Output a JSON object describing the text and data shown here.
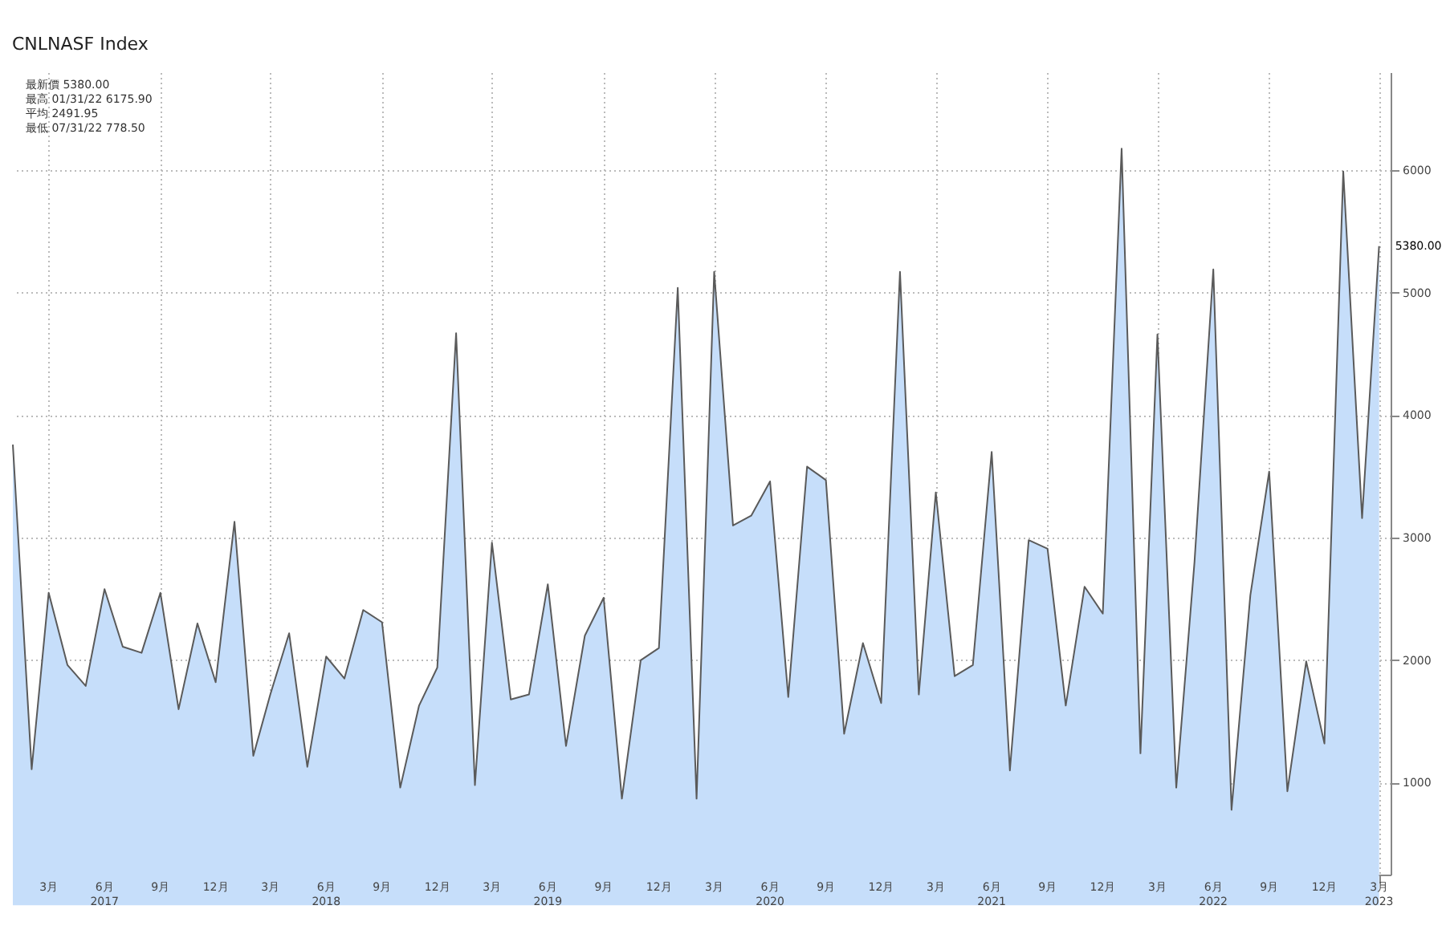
{
  "chart_data": {
    "type": "area",
    "title": "CNLNASF Index",
    "x": [
      "2017-01",
      "2017-02",
      "2017-03",
      "2017-04",
      "2017-05",
      "2017-06",
      "2017-07",
      "2017-08",
      "2017-09",
      "2017-10",
      "2017-11",
      "2017-12",
      "2018-01",
      "2018-02",
      "2018-03",
      "2018-04",
      "2018-05",
      "2018-06",
      "2018-07",
      "2018-08",
      "2018-09",
      "2018-10",
      "2018-11",
      "2018-12",
      "2019-01",
      "2019-02",
      "2019-03",
      "2019-04",
      "2019-05",
      "2019-06",
      "2019-07",
      "2019-08",
      "2019-09",
      "2019-10",
      "2019-11",
      "2019-12",
      "2020-01",
      "2020-02",
      "2020-03",
      "2020-04",
      "2020-05",
      "2020-06",
      "2020-07",
      "2020-08",
      "2020-09",
      "2020-10",
      "2020-11",
      "2020-12",
      "2021-01",
      "2021-02",
      "2021-03",
      "2021-04",
      "2021-05",
      "2021-06",
      "2021-07",
      "2021-08",
      "2021-09",
      "2021-10",
      "2021-11",
      "2021-12",
      "2022-01",
      "2022-02",
      "2022-03",
      "2022-04",
      "2022-05",
      "2022-06",
      "2022-07",
      "2022-08",
      "2022-09",
      "2022-10",
      "2022-11",
      "2022-12",
      "2023-01",
      "2023-02",
      "2023-03"
    ],
    "series": [
      {
        "color": "#c6defa",
        "values": [
          3760,
          1110,
          2550,
          1960,
          1790,
          2580,
          2110,
          2060,
          2550,
          1600,
          2300,
          1820,
          3130,
          1220,
          1720,
          2220,
          1130,
          2030,
          1850,
          2410,
          2310,
          960,
          1630,
          1940,
          4670,
          980,
          2960,
          1680,
          1720,
          2620,
          1300,
          2200,
          2510,
          870,
          2000,
          2100,
          5040,
          870,
          5170,
          3100,
          3180,
          3460,
          1700,
          3580,
          3470,
          1400,
          2140,
          1650,
          5170,
          1720,
          3370,
          1870,
          1960,
          3700,
          1100,
          2980,
          2910,
          1630,
          2600,
          2380,
          6175.9,
          1240,
          4660,
          960,
          2800,
          5190,
          778.5,
          2530,
          3540,
          930,
          1990,
          1320,
          5990,
          3160,
          5380
        ]
      }
    ],
    "xlim": [
      "2017-01",
      "2023-03-20"
    ],
    "xticks": [
      {
        "value": "2017-03",
        "label": "3月"
      },
      {
        "value": "2017-06",
        "label": "6月\n2017"
      },
      {
        "value": "2017-09",
        "label": "9月"
      },
      {
        "value": "2017-12",
        "label": "12月"
      },
      {
        "value": "2018-03",
        "label": "3月"
      },
      {
        "value": "2018-06",
        "label": "6月\n2018"
      },
      {
        "value": "2018-09",
        "label": "9月"
      },
      {
        "value": "2018-12",
        "label": "12月"
      },
      {
        "value": "2019-03",
        "label": "3月"
      },
      {
        "value": "2019-06",
        "label": "6月\n2019"
      },
      {
        "value": "2019-09",
        "label": "9月"
      },
      {
        "value": "2019-12",
        "label": "12月"
      },
      {
        "value": "2020-03",
        "label": "3月"
      },
      {
        "value": "2020-06",
        "label": "6月\n2020"
      },
      {
        "value": "2020-09",
        "label": "9月"
      },
      {
        "value": "2020-12",
        "label": "12月"
      },
      {
        "value": "2021-03",
        "label": "3月"
      },
      {
        "value": "2021-06",
        "label": "6月\n2021"
      },
      {
        "value": "2021-09",
        "label": "9月"
      },
      {
        "value": "2021-12",
        "label": "12月"
      },
      {
        "value": "2022-03",
        "label": "3月"
      },
      {
        "value": "2022-06",
        "label": "6月\n2022"
      },
      {
        "value": "2022-09",
        "label": "9月"
      },
      {
        "value": "2022-12",
        "label": "12月"
      },
      {
        "value": "2023-03",
        "label": "3月\n2023"
      }
    ],
    "ylim": [
      250,
      6800
    ],
    "yticks": [
      1000,
      2000,
      3000,
      4000,
      5000,
      6000
    ],
    "grid": true,
    "annotations": [
      "最新價 5380.00",
      "最高 01/31/22 6175.90",
      "平均 2491.95",
      "最低 07/31/22 778.50",
      {
        "text": "5380.00",
        "x": "2023-03",
        "y": 5380
      }
    ]
  }
}
